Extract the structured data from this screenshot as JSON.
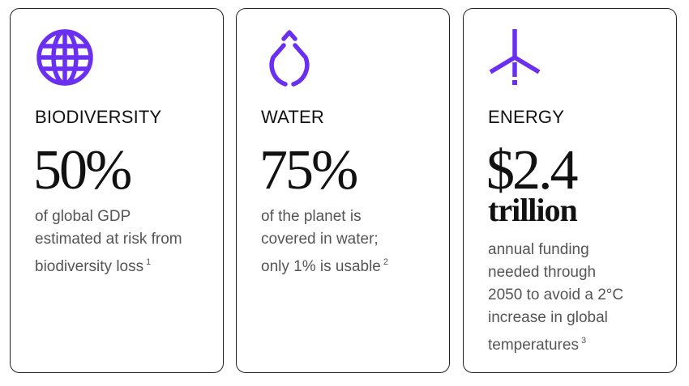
{
  "cards": [
    {
      "title": "BIODIVERSITY",
      "stat": "50%",
      "description": [
        "of global GDP",
        "estimated at risk from",
        "biodiversity loss"
      ],
      "footnote": "1"
    },
    {
      "title": "WATER",
      "stat": "75%",
      "description": [
        "of the planet is",
        "covered in water;",
        "only 1% is usable"
      ],
      "footnote": "2"
    },
    {
      "title": "ENERGY",
      "stat": "$2.4",
      "stat_unit": "trillion",
      "description": [
        "annual funding",
        "needed through",
        "2050 to avoid a 2°C",
        "increase in global",
        "temperatures"
      ],
      "footnote": "3"
    }
  ]
}
